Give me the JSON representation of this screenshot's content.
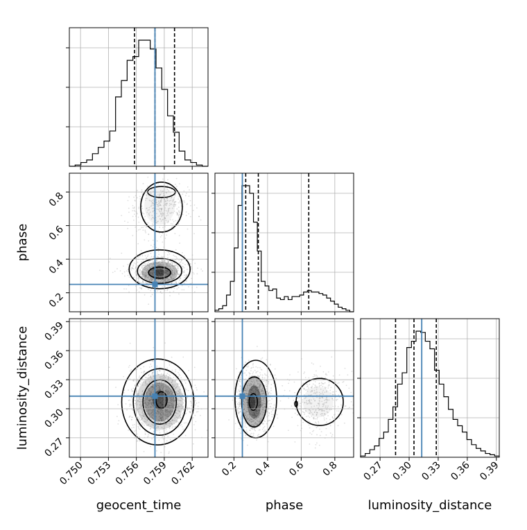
{
  "chart_data": {
    "type": "corner",
    "parameters": [
      "geocent_time",
      "phase",
      "luminosity_distance"
    ],
    "truth": {
      "geocent_time": 0.758,
      "phase": 0.25,
      "luminosity_distance": 0.313
    },
    "quantiles": {
      "geocent_time": [
        0.7558,
        0.758,
        0.7601
      ],
      "phase": [
        0.27,
        0.345,
        0.645
      ],
      "luminosity_distance": [
        0.286,
        0.305,
        0.328
      ]
    },
    "axis_ranges": {
      "geocent_time": [
        0.7488,
        0.7637
      ],
      "phase": [
        0.087,
        0.912
      ],
      "luminosity_distance": [
        0.2499,
        0.393
      ]
    },
    "ticks": {
      "geocent_time": [
        "0.750",
        "0.753",
        "0.756",
        "0.759",
        "0.762"
      ],
      "phase": [
        "0.2",
        "0.4",
        "0.6",
        "0.8"
      ],
      "luminosity_distance": [
        "0.27",
        "0.30",
        "0.33",
        "0.36",
        "0.39"
      ]
    },
    "histograms": {
      "geocent_time": {
        "edges": [
          0.7488,
          0.7637
        ],
        "counts": [
          0,
          1,
          3,
          5,
          10,
          15,
          20,
          28,
          55,
          68,
          84,
          87,
          100,
          100,
          93,
          78,
          61,
          40,
          27,
          12,
          5,
          3,
          1,
          0
        ]
      },
      "phase": {
        "edges": [
          0.087,
          0.912
        ],
        "counts": [
          1,
          2,
          4,
          11,
          20,
          42,
          70,
          83,
          83,
          78,
          59,
          40,
          20,
          17,
          14,
          15,
          9,
          8,
          10,
          8,
          10,
          10,
          11,
          13,
          14,
          13,
          13,
          12,
          11,
          9,
          7,
          5,
          3,
          2,
          1,
          0
        ]
      },
      "luminosity_distance": {
        "edges": [
          0.2499,
          0.393
        ],
        "counts": [
          1,
          3,
          6,
          9,
          15,
          20,
          30,
          40,
          58,
          67,
          87,
          92,
          100,
          99,
          92,
          86,
          69,
          58,
          48,
          38,
          30,
          25,
          20,
          14,
          10,
          7,
          5,
          3,
          2,
          1
        ]
      }
    },
    "grid": true,
    "colors": {
      "truth": "#4682b4",
      "hist": "#000000",
      "quantile": "#000000",
      "points": "#a0a0a0"
    }
  }
}
